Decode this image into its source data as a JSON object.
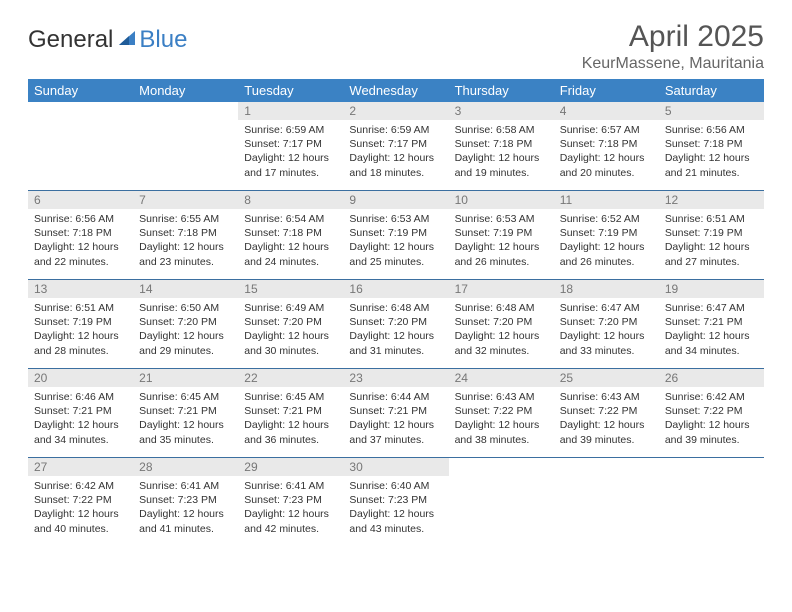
{
  "logo": {
    "part1": "General",
    "part2": "Blue"
  },
  "header": {
    "title": "April 2025",
    "location": "KeurMassene, Mauritania"
  },
  "colors": {
    "header_bg": "#3b82c4",
    "header_fg": "#ffffff",
    "daynum_bg": "#e9e9e9",
    "daynum_fg": "#777777",
    "row_border": "#3b6fa0",
    "title_color": "#555555",
    "location_color": "#666666",
    "body_text": "#333333",
    "logo_blue": "#3b7fc4"
  },
  "daysOfWeek": [
    "Sunday",
    "Monday",
    "Tuesday",
    "Wednesday",
    "Thursday",
    "Friday",
    "Saturday"
  ],
  "grid": [
    [
      {
        "empty": true
      },
      {
        "empty": true
      },
      {
        "num": "1",
        "sunrise": "Sunrise: 6:59 AM",
        "sunset": "Sunset: 7:17 PM",
        "day1": "Daylight: 12 hours",
        "day2": "and 17 minutes."
      },
      {
        "num": "2",
        "sunrise": "Sunrise: 6:59 AM",
        "sunset": "Sunset: 7:17 PM",
        "day1": "Daylight: 12 hours",
        "day2": "and 18 minutes."
      },
      {
        "num": "3",
        "sunrise": "Sunrise: 6:58 AM",
        "sunset": "Sunset: 7:18 PM",
        "day1": "Daylight: 12 hours",
        "day2": "and 19 minutes."
      },
      {
        "num": "4",
        "sunrise": "Sunrise: 6:57 AM",
        "sunset": "Sunset: 7:18 PM",
        "day1": "Daylight: 12 hours",
        "day2": "and 20 minutes."
      },
      {
        "num": "5",
        "sunrise": "Sunrise: 6:56 AM",
        "sunset": "Sunset: 7:18 PM",
        "day1": "Daylight: 12 hours",
        "day2": "and 21 minutes."
      }
    ],
    [
      {
        "num": "6",
        "sunrise": "Sunrise: 6:56 AM",
        "sunset": "Sunset: 7:18 PM",
        "day1": "Daylight: 12 hours",
        "day2": "and 22 minutes."
      },
      {
        "num": "7",
        "sunrise": "Sunrise: 6:55 AM",
        "sunset": "Sunset: 7:18 PM",
        "day1": "Daylight: 12 hours",
        "day2": "and 23 minutes."
      },
      {
        "num": "8",
        "sunrise": "Sunrise: 6:54 AM",
        "sunset": "Sunset: 7:18 PM",
        "day1": "Daylight: 12 hours",
        "day2": "and 24 minutes."
      },
      {
        "num": "9",
        "sunrise": "Sunrise: 6:53 AM",
        "sunset": "Sunset: 7:19 PM",
        "day1": "Daylight: 12 hours",
        "day2": "and 25 minutes."
      },
      {
        "num": "10",
        "sunrise": "Sunrise: 6:53 AM",
        "sunset": "Sunset: 7:19 PM",
        "day1": "Daylight: 12 hours",
        "day2": "and 26 minutes."
      },
      {
        "num": "11",
        "sunrise": "Sunrise: 6:52 AM",
        "sunset": "Sunset: 7:19 PM",
        "day1": "Daylight: 12 hours",
        "day2": "and 26 minutes."
      },
      {
        "num": "12",
        "sunrise": "Sunrise: 6:51 AM",
        "sunset": "Sunset: 7:19 PM",
        "day1": "Daylight: 12 hours",
        "day2": "and 27 minutes."
      }
    ],
    [
      {
        "num": "13",
        "sunrise": "Sunrise: 6:51 AM",
        "sunset": "Sunset: 7:19 PM",
        "day1": "Daylight: 12 hours",
        "day2": "and 28 minutes."
      },
      {
        "num": "14",
        "sunrise": "Sunrise: 6:50 AM",
        "sunset": "Sunset: 7:20 PM",
        "day1": "Daylight: 12 hours",
        "day2": "and 29 minutes."
      },
      {
        "num": "15",
        "sunrise": "Sunrise: 6:49 AM",
        "sunset": "Sunset: 7:20 PM",
        "day1": "Daylight: 12 hours",
        "day2": "and 30 minutes."
      },
      {
        "num": "16",
        "sunrise": "Sunrise: 6:48 AM",
        "sunset": "Sunset: 7:20 PM",
        "day1": "Daylight: 12 hours",
        "day2": "and 31 minutes."
      },
      {
        "num": "17",
        "sunrise": "Sunrise: 6:48 AM",
        "sunset": "Sunset: 7:20 PM",
        "day1": "Daylight: 12 hours",
        "day2": "and 32 minutes."
      },
      {
        "num": "18",
        "sunrise": "Sunrise: 6:47 AM",
        "sunset": "Sunset: 7:20 PM",
        "day1": "Daylight: 12 hours",
        "day2": "and 33 minutes."
      },
      {
        "num": "19",
        "sunrise": "Sunrise: 6:47 AM",
        "sunset": "Sunset: 7:21 PM",
        "day1": "Daylight: 12 hours",
        "day2": "and 34 minutes."
      }
    ],
    [
      {
        "num": "20",
        "sunrise": "Sunrise: 6:46 AM",
        "sunset": "Sunset: 7:21 PM",
        "day1": "Daylight: 12 hours",
        "day2": "and 34 minutes."
      },
      {
        "num": "21",
        "sunrise": "Sunrise: 6:45 AM",
        "sunset": "Sunset: 7:21 PM",
        "day1": "Daylight: 12 hours",
        "day2": "and 35 minutes."
      },
      {
        "num": "22",
        "sunrise": "Sunrise: 6:45 AM",
        "sunset": "Sunset: 7:21 PM",
        "day1": "Daylight: 12 hours",
        "day2": "and 36 minutes."
      },
      {
        "num": "23",
        "sunrise": "Sunrise: 6:44 AM",
        "sunset": "Sunset: 7:21 PM",
        "day1": "Daylight: 12 hours",
        "day2": "and 37 minutes."
      },
      {
        "num": "24",
        "sunrise": "Sunrise: 6:43 AM",
        "sunset": "Sunset: 7:22 PM",
        "day1": "Daylight: 12 hours",
        "day2": "and 38 minutes."
      },
      {
        "num": "25",
        "sunrise": "Sunrise: 6:43 AM",
        "sunset": "Sunset: 7:22 PM",
        "day1": "Daylight: 12 hours",
        "day2": "and 39 minutes."
      },
      {
        "num": "26",
        "sunrise": "Sunrise: 6:42 AM",
        "sunset": "Sunset: 7:22 PM",
        "day1": "Daylight: 12 hours",
        "day2": "and 39 minutes."
      }
    ],
    [
      {
        "num": "27",
        "sunrise": "Sunrise: 6:42 AM",
        "sunset": "Sunset: 7:22 PM",
        "day1": "Daylight: 12 hours",
        "day2": "and 40 minutes."
      },
      {
        "num": "28",
        "sunrise": "Sunrise: 6:41 AM",
        "sunset": "Sunset: 7:23 PM",
        "day1": "Daylight: 12 hours",
        "day2": "and 41 minutes."
      },
      {
        "num": "29",
        "sunrise": "Sunrise: 6:41 AM",
        "sunset": "Sunset: 7:23 PM",
        "day1": "Daylight: 12 hours",
        "day2": "and 42 minutes."
      },
      {
        "num": "30",
        "sunrise": "Sunrise: 6:40 AM",
        "sunset": "Sunset: 7:23 PM",
        "day1": "Daylight: 12 hours",
        "day2": "and 43 minutes."
      },
      {
        "empty": true
      },
      {
        "empty": true
      },
      {
        "empty": true
      }
    ]
  ]
}
